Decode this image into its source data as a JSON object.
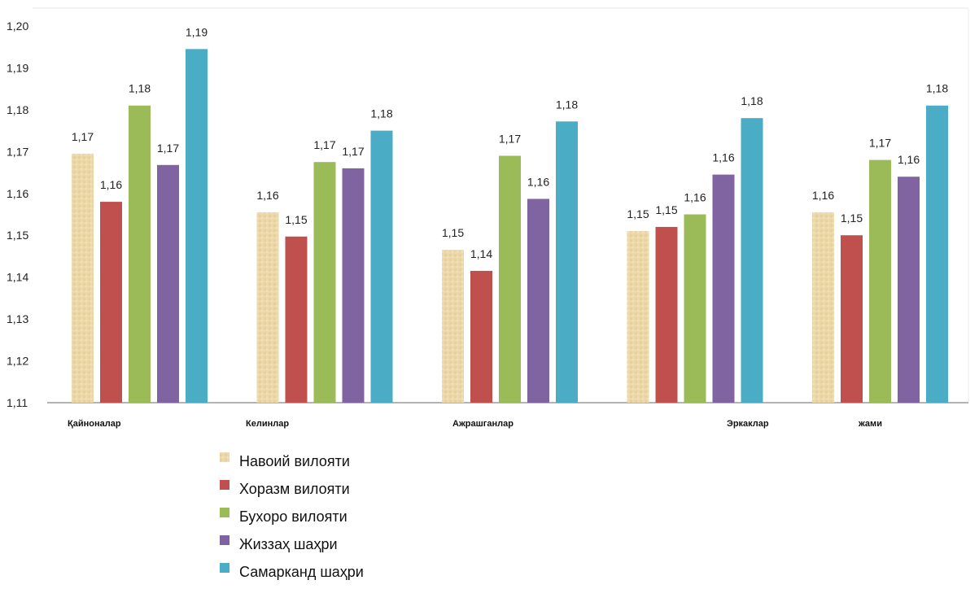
{
  "chart_data": {
    "type": "bar",
    "title": "",
    "xlabel": "",
    "ylabel": "",
    "ylim": [
      1.11,
      1.2
    ],
    "yticks": [
      "1,11",
      "1,12",
      "1,13",
      "1,14",
      "1,15",
      "1,16",
      "1,17",
      "1,18",
      "1,19",
      "1,20"
    ],
    "grid": false,
    "legend_position": "bottom",
    "categories": [
      "Қайноналар",
      "Келинлар",
      "Ажрашганлар",
      "Эркаклар",
      "жами"
    ],
    "series": [
      {
        "name": "Навоий вилояти",
        "color": "#ead7a8",
        "values": [
          1.1695,
          1.1555,
          1.1465,
          1.151,
          1.1555
        ],
        "labels": [
          "1,17",
          "1,16",
          "1,15",
          "1,15",
          "1,16"
        ]
      },
      {
        "name": "Хоразм вилояти",
        "color": "#c0504d",
        "values": [
          1.158,
          1.1497,
          1.1415,
          1.152,
          1.15
        ],
        "labels": [
          "1,16",
          "1,15",
          "1,14",
          "1,15",
          "1,15"
        ]
      },
      {
        "name": "Бухоро вилояти",
        "color": "#9bbb59",
        "values": [
          1.181,
          1.1675,
          1.169,
          1.155,
          1.168
        ],
        "labels": [
          "1,18",
          "1,17",
          "1,17",
          "1,16",
          "1,17"
        ]
      },
      {
        "name": "Жиззаҳ шаҳри",
        "color": "#8064a2",
        "values": [
          1.1668,
          1.166,
          1.1587,
          1.1645,
          1.164
        ],
        "labels": [
          "1,17",
          "1,17",
          "1,16",
          "1,16",
          "1,16"
        ]
      },
      {
        "name": "Самарканд шаҳри",
        "color": "#4bacc6",
        "values": [
          1.1945,
          1.175,
          1.1772,
          1.178,
          1.181
        ],
        "labels": [
          "1,19",
          "1,18",
          "1,18",
          "1,18",
          "1,18"
        ]
      }
    ]
  }
}
